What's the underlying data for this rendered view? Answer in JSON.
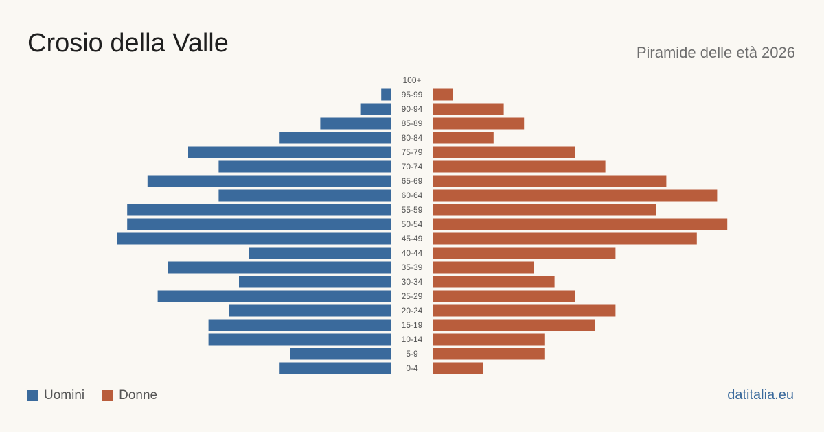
{
  "header": {
    "title": "Crosio della Valle",
    "subtitle": "Piramide delle età 2026"
  },
  "legend": {
    "men_label": "Uomini",
    "women_label": "Donne"
  },
  "brand": "datitalia.eu",
  "colors": {
    "men": "#3a6a9c",
    "women": "#b95d3c",
    "background": "#faf8f3",
    "brand": "#3a6a9c"
  },
  "chart_data": {
    "type": "bar",
    "orientation": "horizontal-pyramid",
    "categories": [
      "100+",
      "95-99",
      "90-94",
      "85-89",
      "80-84",
      "75-79",
      "70-74",
      "65-69",
      "60-64",
      "55-59",
      "50-54",
      "45-49",
      "40-44",
      "35-39",
      "30-34",
      "25-29",
      "20-24",
      "15-19",
      "10-14",
      "5-9",
      "0-4"
    ],
    "series": [
      {
        "name": "Uomini",
        "values": [
          0,
          1,
          3,
          7,
          11,
          20,
          17,
          24,
          17,
          26,
          26,
          27,
          14,
          22,
          15,
          23,
          16,
          18,
          18,
          10,
          11
        ]
      },
      {
        "name": "Donne",
        "values": [
          0,
          2,
          7,
          9,
          6,
          14,
          17,
          23,
          28,
          22,
          29,
          26,
          18,
          10,
          12,
          14,
          18,
          16,
          11,
          11,
          5
        ]
      }
    ],
    "grid": false,
    "legend_position": "bottom-left"
  }
}
